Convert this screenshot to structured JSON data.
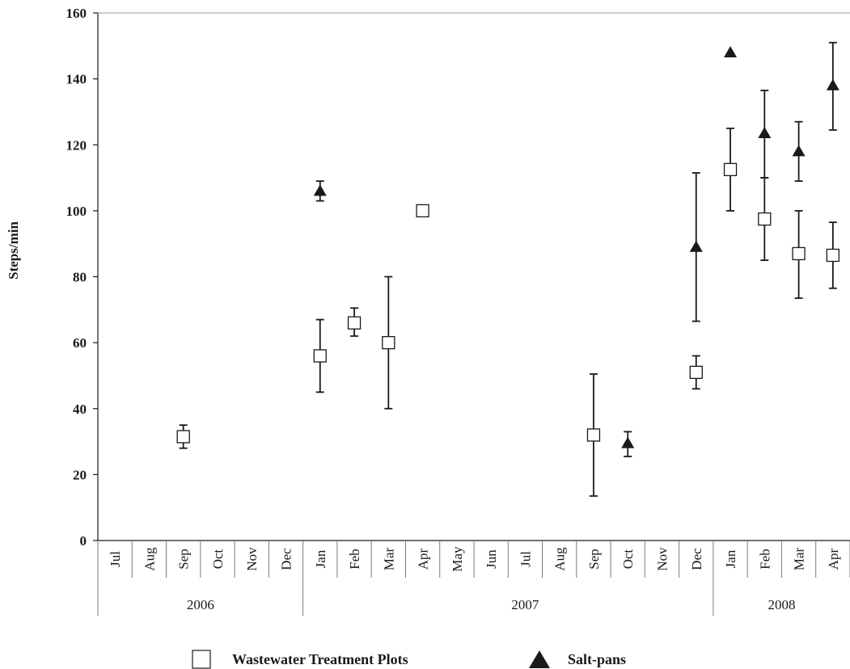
{
  "chart_data": {
    "type": "scatter",
    "ylabel": "Steps/min",
    "ylim": [
      0,
      160
    ],
    "yticks": [
      0,
      20,
      40,
      60,
      80,
      100,
      120,
      140,
      160
    ],
    "yticks_labels": [
      "0",
      "20",
      "40",
      "60",
      "80",
      "100",
      "120",
      "140",
      "160"
    ],
    "categories": [
      "Jul",
      "Aug",
      "Sep",
      "Oct",
      "Nov",
      "Dec",
      "Jan",
      "Feb",
      "Mar",
      "Apr",
      "May",
      "Jun",
      "Jul",
      "Aug",
      "Sep",
      "Oct",
      "Nov",
      "Dec",
      "Jan",
      "Feb",
      "Mar",
      "Apr"
    ],
    "year_groups": [
      {
        "label": "2006",
        "start": 0,
        "end": 5
      },
      {
        "label": "2007",
        "start": 6,
        "end": 18
      },
      {
        "label": "2008",
        "start": 18,
        "end": 21
      }
    ],
    "grid": false,
    "legend_position": "bottom",
    "series": [
      {
        "name": "Wastewater Treatment Plots",
        "marker": "open-square",
        "color": "#1a1a1a",
        "points": [
          {
            "x": "Sep",
            "index": 2,
            "y": 31.5,
            "err_low": 28,
            "err_high": 35
          },
          {
            "x": "Jan",
            "index": 6,
            "y": 56,
            "err_low": 45,
            "err_high": 67
          },
          {
            "x": "Feb",
            "index": 7,
            "y": 66,
            "err_low": 62,
            "err_high": 70.5
          },
          {
            "x": "Mar",
            "index": 8,
            "y": 60,
            "err_low": 40,
            "err_high": 80
          },
          {
            "x": "Apr",
            "index": 9,
            "y": 100,
            "err_low": null,
            "err_high": null
          },
          {
            "x": "Sep",
            "index": 14,
            "y": 32,
            "err_low": 13.5,
            "err_high": 50.5
          },
          {
            "x": "Dec",
            "index": 17,
            "y": 51,
            "err_low": 46,
            "err_high": 56
          },
          {
            "x": "Jan",
            "index": 18,
            "y": 112.5,
            "err_low": 100,
            "err_high": 125
          },
          {
            "x": "Feb",
            "index": 19,
            "y": 97.5,
            "err_low": 85,
            "err_high": 110
          },
          {
            "x": "Mar",
            "index": 20,
            "y": 87,
            "err_low": 73.5,
            "err_high": 100
          },
          {
            "x": "Apr",
            "index": 21,
            "y": 86.5,
            "err_low": 76.5,
            "err_high": 96.5
          }
        ]
      },
      {
        "name": "Salt-pans",
        "marker": "filled-triangle",
        "color": "#1a1a1a",
        "points": [
          {
            "x": "Jan",
            "index": 6,
            "y": 106,
            "err_low": 103,
            "err_high": 109
          },
          {
            "x": "Oct",
            "index": 15,
            "y": 29.5,
            "err_low": 25.5,
            "err_high": 33
          },
          {
            "x": "Dec",
            "index": 17,
            "y": 89,
            "err_low": 66.5,
            "err_high": 111.5
          },
          {
            "x": "Jan",
            "index": 18,
            "y": 148,
            "err_low": null,
            "err_high": null
          },
          {
            "x": "Feb",
            "index": 19,
            "y": 123.5,
            "err_low": 110,
            "err_high": 136.5
          },
          {
            "x": "Mar",
            "index": 20,
            "y": 118,
            "err_low": 109,
            "err_high": 127
          },
          {
            "x": "Apr",
            "index": 21,
            "y": 138,
            "err_low": 124.5,
            "err_high": 151
          }
        ]
      }
    ]
  }
}
